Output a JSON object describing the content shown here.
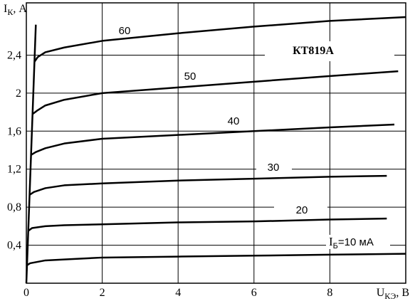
{
  "chart_data": {
    "type": "line",
    "y_label": {
      "text": "I",
      "sub": "К",
      "rest": ", А"
    },
    "x_label": {
      "text": "U",
      "sub": "КЭ",
      "rest": ", В"
    },
    "xlim": [
      0,
      10
    ],
    "ylim": [
      0,
      2.95
    ],
    "xticks": [
      0,
      2,
      4,
      6,
      8
    ],
    "yticks": [
      {
        "value": 0.4,
        "label": "0,4"
      },
      {
        "value": 0.8,
        "label": "0,8"
      },
      {
        "value": 1.2,
        "label": "1,2"
      },
      {
        "value": 1.6,
        "label": "1,6"
      },
      2,
      {
        "value": 2.4,
        "label": "2,4"
      }
    ],
    "grid": true,
    "annotations": [
      "КТ819А",
      "60",
      "50",
      "40",
      "30",
      "20",
      {
        "text": "I",
        "sub": "Б",
        "rest": "=10 мА"
      }
    ],
    "series": [
      {
        "color": "#000000",
        "x": [
          0.018,
          0.1,
          0.5,
          1,
          2,
          4,
          6,
          8,
          10
        ],
        "values": [
          0.19,
          0.21,
          0.24,
          0.25,
          0.27,
          0.28,
          0.29,
          0.3,
          0.31
        ]
      },
      {
        "color": "#000000",
        "x": [
          0.05,
          0.15,
          0.5,
          1,
          2,
          4,
          6,
          8,
          9.5
        ],
        "values": [
          0.55,
          0.58,
          0.6,
          0.61,
          0.62,
          0.64,
          0.65,
          0.67,
          0.68
        ]
      },
      {
        "color": "#000000",
        "x": [
          0.085,
          0.2,
          0.5,
          1,
          2,
          4,
          6,
          8,
          9.5
        ],
        "values": [
          0.93,
          0.96,
          1.0,
          1.03,
          1.05,
          1.08,
          1.1,
          1.12,
          1.13
        ]
      },
      {
        "color": "#000000",
        "x": [
          0.125,
          0.25,
          0.5,
          1,
          2,
          4,
          6,
          8,
          9.7
        ],
        "values": [
          1.35,
          1.38,
          1.42,
          1.47,
          1.52,
          1.56,
          1.6,
          1.64,
          1.67
        ]
      },
      {
        "color": "#000000",
        "x": [
          0.165,
          0.3,
          0.5,
          1,
          2,
          4,
          6,
          8,
          9.8
        ],
        "values": [
          1.78,
          1.82,
          1.87,
          1.93,
          2.0,
          2.06,
          2.12,
          2.18,
          2.23
        ]
      },
      {
        "color": "#000000",
        "x": [
          0.215,
          0.3,
          0.5,
          1,
          2,
          4,
          6,
          8,
          10
        ],
        "values": [
          2.33,
          2.38,
          2.43,
          2.48,
          2.55,
          2.63,
          2.7,
          2.76,
          2.8
        ]
      },
      {
        "color": "#000000",
        "x": [
          0,
          0.25
        ],
        "values": [
          0,
          2.72
        ]
      }
    ]
  }
}
